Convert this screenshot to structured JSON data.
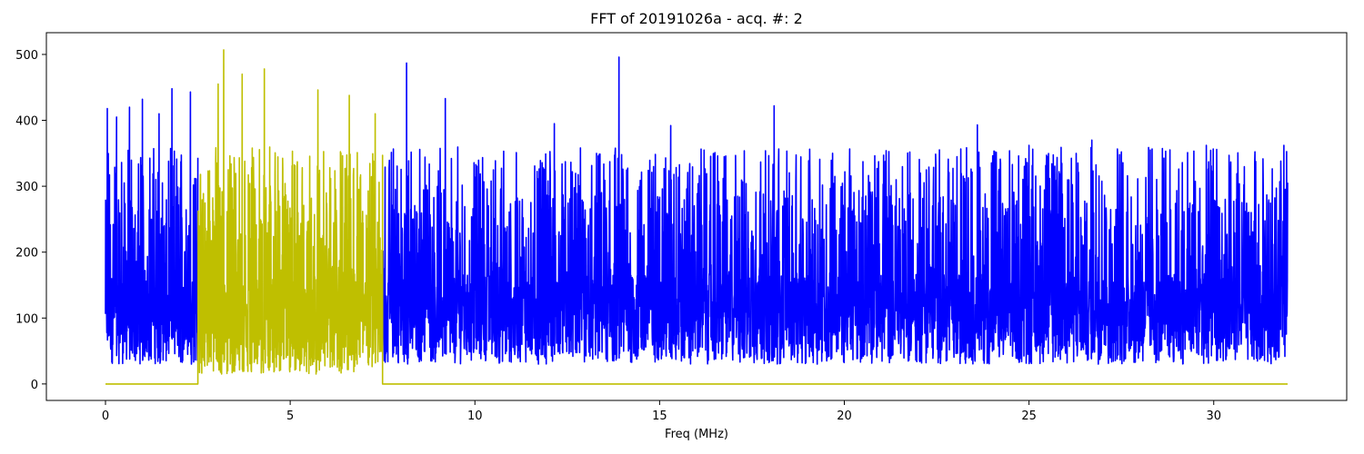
{
  "chart_data": {
    "type": "line",
    "title": "FFT of 20191026a - acq. #: 2",
    "xlabel": "Freq (MHz)",
    "ylabel": "",
    "xlim": [
      -1.6,
      33.6
    ],
    "ylim": [
      -25,
      533
    ],
    "xticks": [
      0,
      5,
      10,
      15,
      20,
      25,
      30
    ],
    "yticks": [
      0,
      100,
      200,
      300,
      400,
      500
    ],
    "grid": false,
    "legend": "none",
    "series": [
      {
        "color": "#0000ff",
        "style": "dense noisy FFT magnitude",
        "x_range": [
          0,
          32
        ],
        "band": [
          0,
          2.5,
          7.5,
          32
        ],
        "baseline_range": [
          30,
          280
        ],
        "peak_values": [
          [
            0.05,
            418
          ],
          [
            0.3,
            405
          ],
          [
            0.65,
            420
          ],
          [
            1.0,
            432
          ],
          [
            1.45,
            410
          ],
          [
            1.8,
            448
          ],
          [
            2.3,
            443
          ],
          [
            8.15,
            487
          ],
          [
            9.2,
            433
          ],
          [
            12.15,
            395
          ],
          [
            13.9,
            496
          ],
          [
            15.3,
            392
          ],
          [
            18.1,
            422
          ],
          [
            23.6,
            393
          ],
          [
            25.0,
            362
          ],
          [
            26.7,
            370
          ],
          [
            29.8,
            362
          ],
          [
            31.9,
            362
          ]
        ]
      },
      {
        "color": "#bfbf00",
        "style": "filtered band (2.5–7.5 MHz), zero elsewhere",
        "x_range": [
          0,
          32
        ],
        "band": [
          2.5,
          7.5
        ],
        "peak_values": [
          [
            3.2,
            507
          ],
          [
            3.05,
            455
          ],
          [
            3.7,
            470
          ],
          [
            4.3,
            478
          ],
          [
            5.75,
            446
          ],
          [
            6.6,
            438
          ],
          [
            7.3,
            410
          ]
        ],
        "outside_value": 0
      }
    ]
  }
}
